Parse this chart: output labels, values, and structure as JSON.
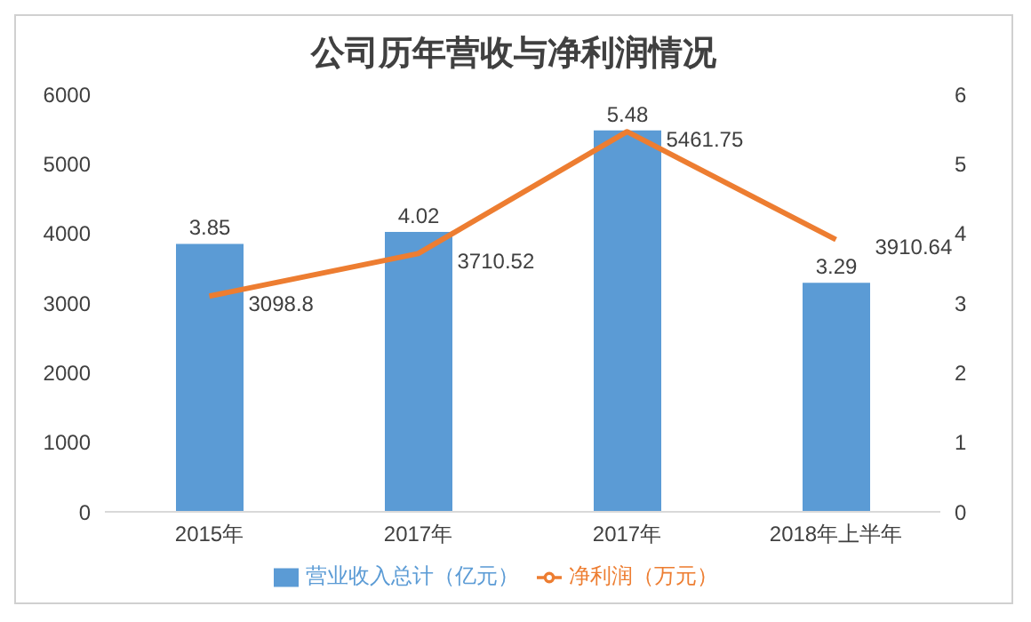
{
  "chart_data": {
    "type": "bar",
    "title": "公司历年营收与净利润情况",
    "categories": [
      "2015年",
      "2017年",
      "2017年",
      "2018年上半年"
    ],
    "series": [
      {
        "name": "营业收入总计（亿元）",
        "axis": "y2",
        "color": "#5b9bd5",
        "values": [
          3.85,
          4.02,
          5.48,
          3.29
        ]
      },
      {
        "name": "净利润（万元）",
        "type": "line",
        "axis": "y",
        "color": "#ed7d31",
        "values": [
          3098.8,
          3710.52,
          5461.75,
          3910.64
        ]
      }
    ],
    "ylim": [
      0,
      6000
    ],
    "yticks": [
      0,
      1000,
      2000,
      3000,
      4000,
      5000,
      6000
    ],
    "y2lim": [
      0,
      6
    ],
    "y2ticks": [
      0,
      1,
      2,
      3,
      4,
      5,
      6
    ],
    "data_labels": true,
    "grid": false,
    "legend": "bottom",
    "marker": "none"
  }
}
